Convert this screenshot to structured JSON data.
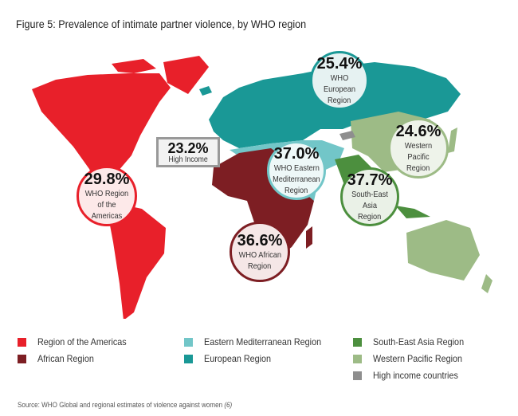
{
  "title": "Figure 5: Prevalence of intimate partner violence, by WHO region",
  "colors": {
    "americas": "#e8202a",
    "african": "#7d1e23",
    "eastern_mediterranean": "#72c6c8",
    "european": "#1a9896",
    "south_east_asia": "#4c8f3e",
    "western_pacific": "#9dbb86",
    "high_income": "#8e8e8e"
  },
  "bubbles": {
    "americas": {
      "value": "29.8%",
      "label1": "WHO Region",
      "label2": "of the Americas"
    },
    "european": {
      "value": "25.4%",
      "label1": "WHO European",
      "label2": "Region"
    },
    "eastern_mediterranean": {
      "value": "37.0%",
      "label1": "WHO Eastern",
      "label2": "Mediterranean",
      "label3": "Region"
    },
    "western_pacific": {
      "value": "24.6%",
      "label1": "Western Pacific",
      "label2": "Region"
    },
    "south_east_asia": {
      "value": "37.7%",
      "label1": "South-East Asia",
      "label2": "Region"
    },
    "african": {
      "value": "36.6%",
      "label1": "WHO African",
      "label2": "Region"
    },
    "high_income": {
      "value": "23.2%",
      "label1": "High Income"
    }
  },
  "legend": [
    {
      "label": "Region of the Americas",
      "color": "#e8202a"
    },
    {
      "label": "African Region",
      "color": "#7d1e23"
    },
    {
      "label": "Eastern Mediterranean Region",
      "color": "#72c6c8"
    },
    {
      "label": "European Region",
      "color": "#1a9896"
    },
    {
      "label": "South-East Asia Region",
      "color": "#4c8f3e"
    },
    {
      "label": "Western Pacific Region",
      "color": "#9dbb86"
    },
    {
      "label": "High income countries",
      "color": "#8e8e8e"
    }
  ],
  "source": {
    "text": "Source: WHO Global and regional estimates of violence against women ",
    "ref": "(6)"
  }
}
